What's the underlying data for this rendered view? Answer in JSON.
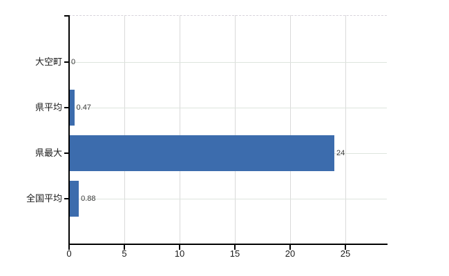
{
  "chart_data": {
    "type": "bar",
    "orientation": "horizontal",
    "title": "",
    "categories": [
      "大空町",
      "県平均",
      "県最大",
      "全国平均"
    ],
    "values": [
      0,
      0.47,
      24,
      0.88
    ],
    "value_labels": [
      "0",
      "0.47",
      "24",
      "0.88"
    ],
    "x_tick_labels": [
      "0",
      "5",
      "10",
      "15",
      "20",
      "25"
    ],
    "x_tick_values": [
      0,
      5,
      10,
      15,
      20,
      25
    ],
    "xlim": [
      0,
      28.75
    ],
    "grid": true,
    "legend": "none"
  },
  "colors": {
    "bar": "#3c6cad",
    "axis": "#000000",
    "grid_vertical": "#d9d9d9",
    "grid_horizontal": "#dde4dd",
    "plot_top_border": "#d6d2da",
    "category_label": "#1a1a1a",
    "tick_label": "#1a1a1a",
    "value_label": "#3a3a3a",
    "background": "#ffffff"
  }
}
